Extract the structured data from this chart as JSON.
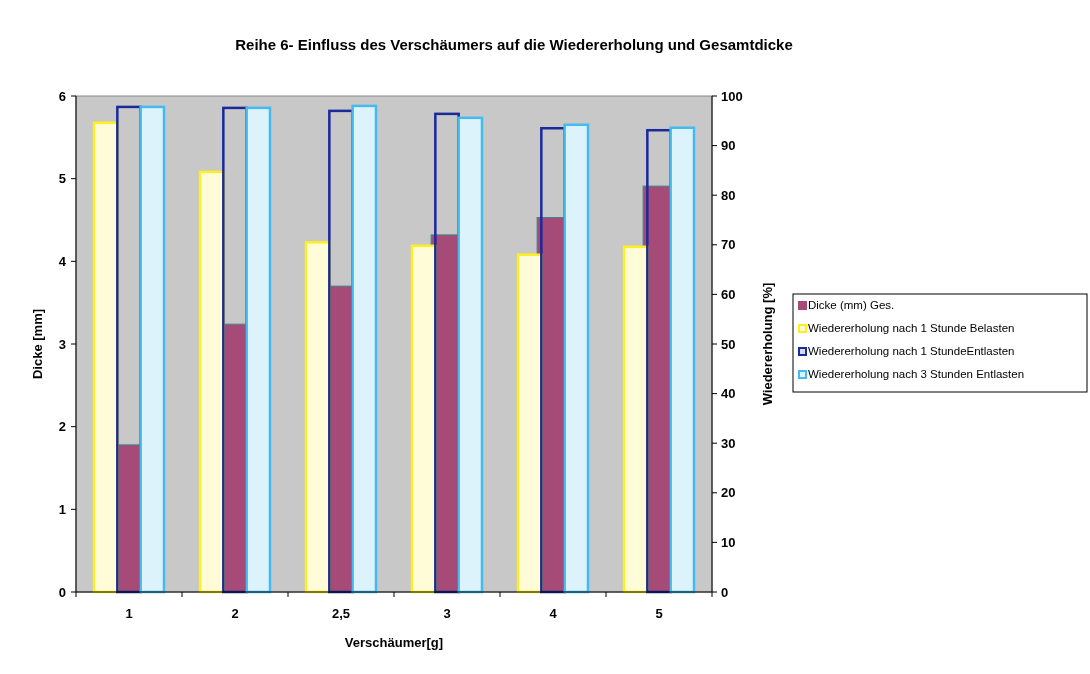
{
  "chart_data": {
    "type": "bar",
    "title": "Reihe 6- Einfluss des Verschäumers auf die Wiedererholung und Gesamtdicke",
    "xlabel": "Verschäumer[g]",
    "ylabel": "Dicke [mm]",
    "y2label": "Wiedererholung [%]",
    "categories": [
      "1",
      "2",
      "2,5",
      "3",
      "4",
      "5"
    ],
    "series": [
      {
        "name": "Dicke (mm) Ges.",
        "color": "#a64a78",
        "values": [
          1.78,
          3.24,
          3.7,
          4.32,
          4.53,
          4.91
        ]
      },
      {
        "name": "Wiedererholung nach 1 Stunde Belasten",
        "color": "#ffee22",
        "axis": "y2",
        "values": [
          94.6,
          84.7,
          70.5,
          69.8,
          68.0,
          69.6
        ]
      },
      {
        "name": "Wiedererholung nach 1 StundeEntlasten",
        "color": "#1a2a9a",
        "axis": "y2",
        "values": [
          97.8,
          97.6,
          97.0,
          96.4,
          93.5,
          93.1
        ]
      },
      {
        "name": "Wiedererholung nach 3 Stunden Entlasten",
        "color": "#44bbee",
        "axis": "y2",
        "values": [
          97.8,
          97.6,
          98.0,
          95.6,
          94.2,
          93.6
        ]
      }
    ],
    "ylim": [
      0,
      6
    ],
    "yticks": [
      0,
      1,
      2,
      3,
      4,
      5,
      6
    ],
    "y2lim": [
      0,
      100
    ],
    "y2ticks": [
      0,
      10,
      20,
      30,
      40,
      50,
      60,
      70,
      80,
      90,
      100
    ],
    "grid": false,
    "legend": "right"
  }
}
